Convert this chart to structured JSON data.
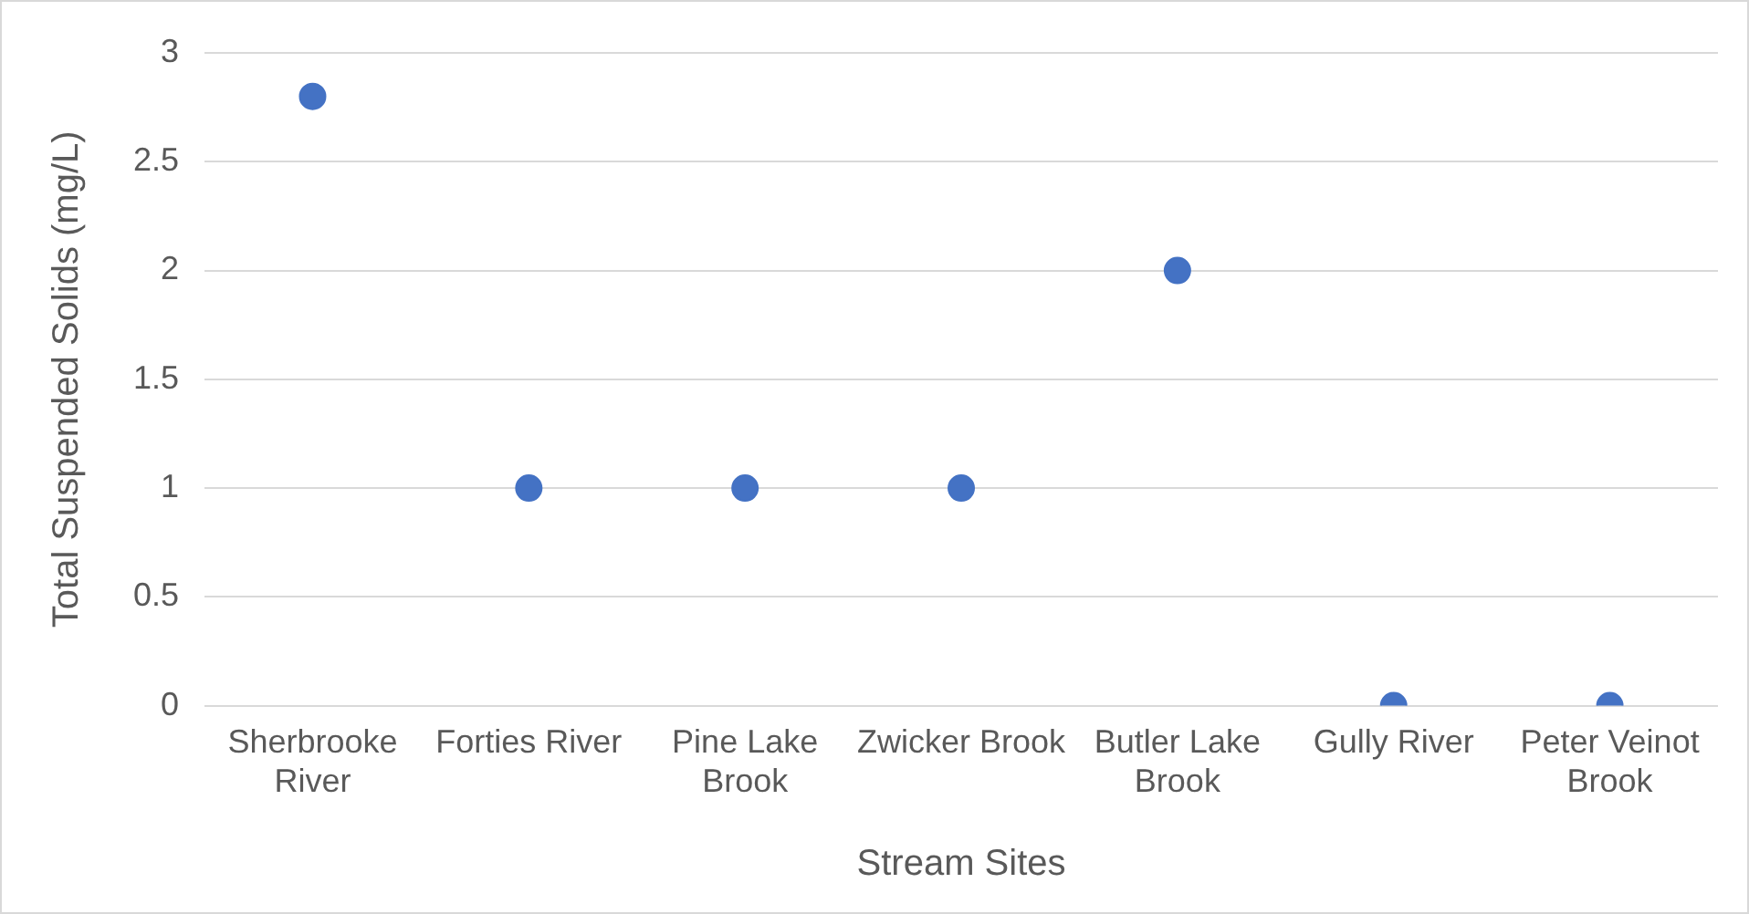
{
  "chart_data": {
    "type": "scatter",
    "xlabel": "Stream Sites",
    "ylabel": "Total Suspended Solids (mg/L)",
    "categories": [
      "Sherbrooke River",
      "Forties River",
      "Pine Lake Brook",
      "Zwicker Brook",
      "Butler Lake Brook",
      "Gully River",
      "Peter Veinot Brook"
    ],
    "series": [
      {
        "color": "#4472c4",
        "values": [
          2.8,
          1,
          1,
          1,
          2,
          0,
          0
        ]
      }
    ],
    "ylim": [
      0,
      3
    ],
    "yticks": [
      0,
      0.5,
      1,
      1.5,
      2,
      2.5,
      3
    ],
    "grid": "y",
    "marker": "circle"
  }
}
